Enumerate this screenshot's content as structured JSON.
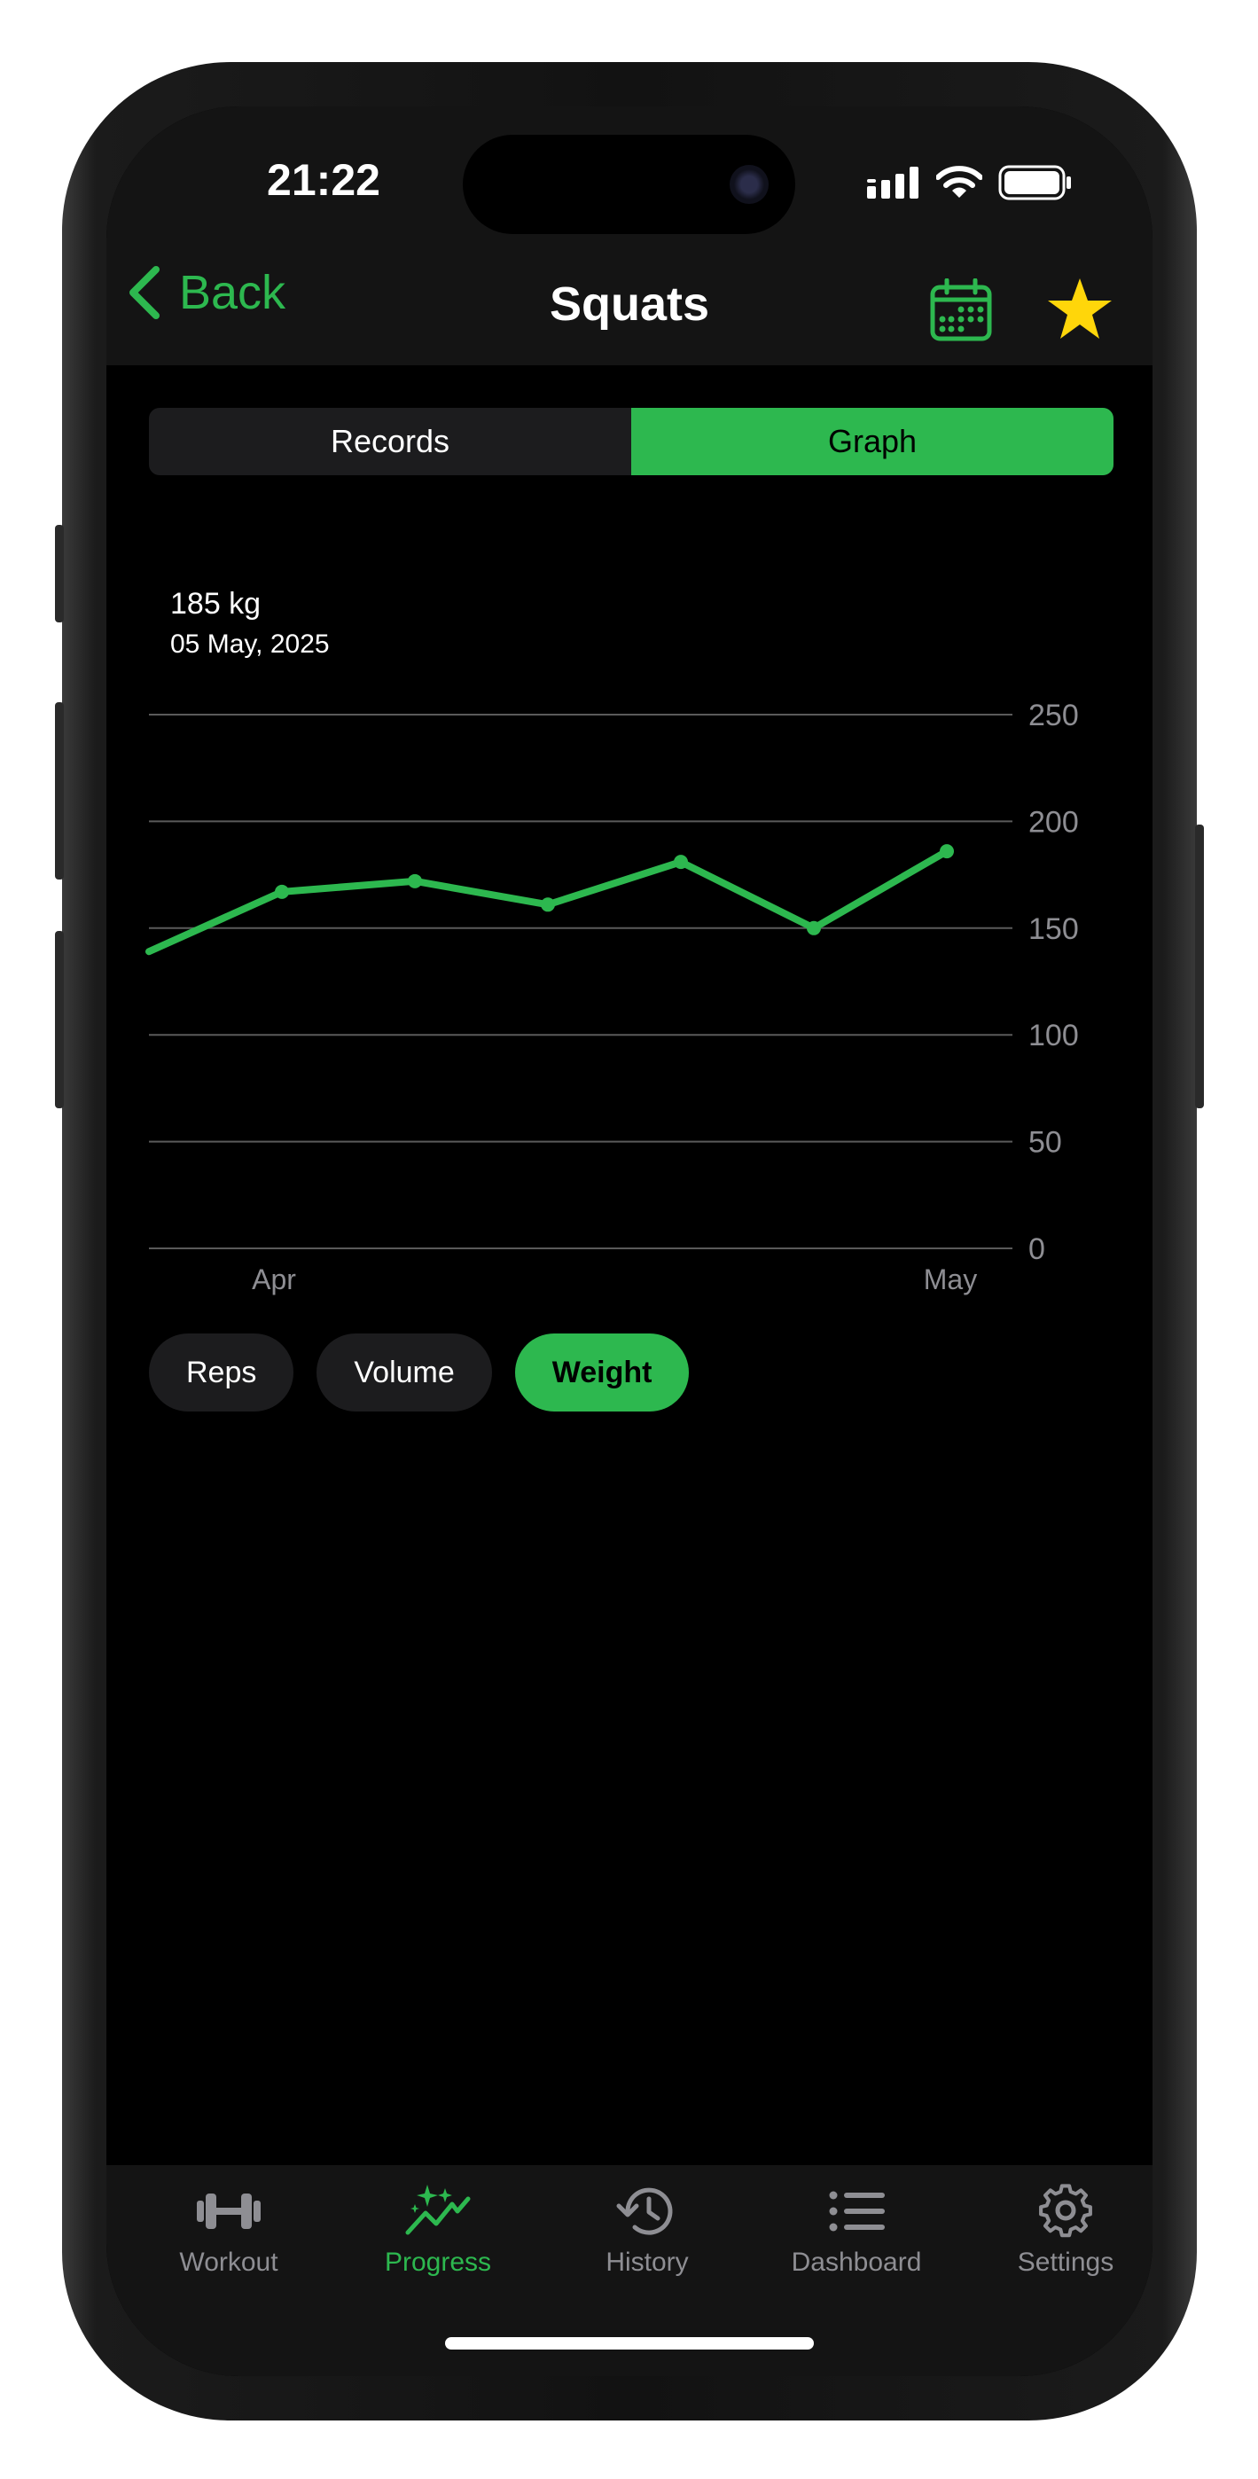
{
  "status_bar": {
    "time": "21:22"
  },
  "nav": {
    "back_label": "Back",
    "title": "Squats"
  },
  "segments": [
    {
      "label": "Records",
      "active": false
    },
    {
      "label": "Graph",
      "active": true
    }
  ],
  "selection": {
    "value": "185 kg",
    "date": "05 May, 2025"
  },
  "chart_data": {
    "type": "line",
    "x_tick_labels": [
      "Apr",
      "May"
    ],
    "y_ticks": [
      0,
      50,
      100,
      150,
      200,
      250
    ],
    "ylim": [
      0,
      250
    ],
    "grid": true,
    "line_color": "#2db84f",
    "points": [
      {
        "x": 0,
        "y": 139
      },
      {
        "x": 1,
        "y": 167
      },
      {
        "x": 2,
        "y": 172
      },
      {
        "x": 3,
        "y": 161
      },
      {
        "x": 4,
        "y": 181
      },
      {
        "x": 5,
        "y": 150
      },
      {
        "x": 6,
        "y": 186
      }
    ]
  },
  "metric_pills": [
    {
      "label": "Reps",
      "active": false
    },
    {
      "label": "Volume",
      "active": false
    },
    {
      "label": "Weight",
      "active": true
    }
  ],
  "tabbar": [
    {
      "label": "Workout",
      "icon": "dumbbell-icon",
      "active": false
    },
    {
      "label": "Progress",
      "icon": "sparkle-chart-icon",
      "active": true
    },
    {
      "label": "History",
      "icon": "history-clock-icon",
      "active": false
    },
    {
      "label": "Dashboard",
      "icon": "list-icon",
      "active": false
    },
    {
      "label": "Settings",
      "icon": "gear-icon",
      "active": false
    }
  ],
  "colors": {
    "accent": "#2db84f",
    "star": "#ffd60a",
    "background": "#000000",
    "bar": "#141414"
  }
}
